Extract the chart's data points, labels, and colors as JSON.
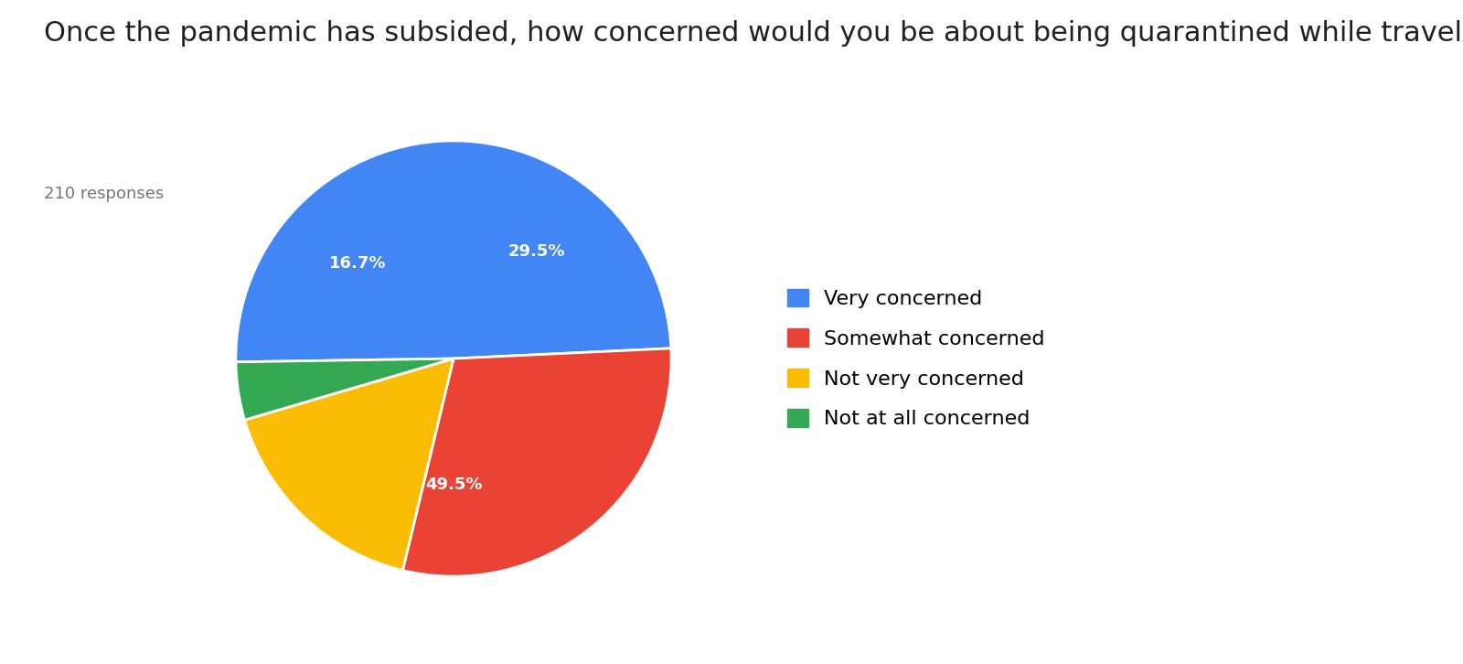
{
  "title": "Once the pandemic has subsided, how concerned would you be about being quarantined while traveling?",
  "subtitle": "210 responses",
  "labels": [
    "Very concerned",
    "Somewhat concerned",
    "Not very concerned",
    "Not at all concerned"
  ],
  "values": [
    49.5,
    29.5,
    16.7,
    4.3
  ],
  "colors": [
    "#4285F4",
    "#EA4335",
    "#FBBC04",
    "#34A853"
  ],
  "pct_labels": [
    "49.5%",
    "29.5%",
    "16.7%",
    ""
  ],
  "background_color": "#ffffff",
  "title_fontsize": 22,
  "subtitle_fontsize": 13,
  "legend_fontsize": 16
}
